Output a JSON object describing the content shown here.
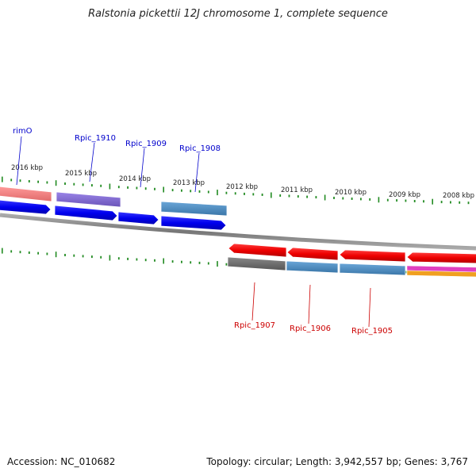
{
  "title": "Ralstonia pickettii 12J chromosome 1, complete sequence",
  "footer": {
    "accession": "Accession: NC_010682",
    "summary": "Topology: circular; Length: 3,942,557 bp; Genes: 3,767"
  },
  "scale_ticks": [
    "2016 kbp",
    "2015 kbp",
    "2014 kbp",
    "2013 kbp",
    "2012 kbp",
    "2011 kbp",
    "2010 kbp",
    "2009 kbp",
    "2008 kbp"
  ],
  "genes_top": [
    {
      "name": "rimO",
      "color": "#0000cc"
    },
    {
      "name": "Rpic_1910",
      "color": "#0000cc"
    },
    {
      "name": "Rpic_1909",
      "color": "#0000cc"
    },
    {
      "name": "Rpic_1908",
      "color": "#0000cc"
    }
  ],
  "genes_bottom": [
    {
      "name": "Rpic_1907",
      "color": "#cc0000"
    },
    {
      "name": "Rpic_1906",
      "color": "#cc0000"
    },
    {
      "name": "Rpic_1905",
      "color": "#cc0000"
    }
  ],
  "colors": {
    "forward_gene": "#0000ee",
    "reverse_gene": "#ee0000",
    "backbone": "#888888",
    "ticks": "#228b22",
    "cog_blue": "#4a86b8",
    "cog_purple": "#7a64c8",
    "cog_salmon": "#ef7f7f",
    "cog_gray": "#666666"
  }
}
